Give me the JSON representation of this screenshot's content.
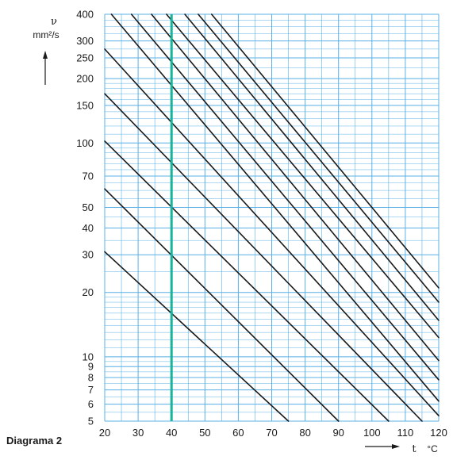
{
  "chart_data": {
    "type": "line",
    "caption": "Diagrama 2",
    "x_axis": {
      "symbol": "t",
      "unit": "°C",
      "range": [
        20,
        120
      ],
      "scale": "linear",
      "ticks": [
        20,
        30,
        40,
        50,
        60,
        70,
        80,
        90,
        100,
        110,
        120
      ]
    },
    "y_axis": {
      "symbol": "ν",
      "unit": "mm²/s",
      "range": [
        5,
        400
      ],
      "scale": "log",
      "ticks": [
        5,
        6,
        7,
        8,
        9,
        10,
        20,
        30,
        40,
        50,
        70,
        100,
        150,
        200,
        250,
        300,
        400
      ]
    },
    "grid": true,
    "grid_color": "#5ab0e6",
    "line_color": "#1a1a1a",
    "reference_line": {
      "x": 40,
      "color": "#17b39a"
    },
    "series": [
      {
        "points": [
          [
            20,
            31
          ],
          [
            75,
            5
          ]
        ]
      },
      {
        "points": [
          [
            20,
            61
          ],
          [
            90,
            5
          ]
        ]
      },
      {
        "points": [
          [
            20,
            102
          ],
          [
            105,
            5
          ]
        ]
      },
      {
        "points": [
          [
            20,
            170
          ],
          [
            115,
            5
          ]
        ]
      },
      {
        "points": [
          [
            20,
            275
          ],
          [
            120,
            5.3
          ]
        ]
      },
      {
        "points": [
          [
            22,
            400
          ],
          [
            120,
            6.2
          ]
        ]
      },
      {
        "points": [
          [
            28,
            400
          ],
          [
            120,
            7.8
          ]
        ]
      },
      {
        "points": [
          [
            34,
            400
          ],
          [
            120,
            9.6
          ]
        ]
      },
      {
        "points": [
          [
            38.5,
            400
          ],
          [
            120,
            12.3
          ]
        ]
      },
      {
        "points": [
          [
            44,
            400
          ],
          [
            120,
            14.8
          ]
        ]
      },
      {
        "points": [
          [
            48,
            400
          ],
          [
            120,
            18
          ]
        ]
      },
      {
        "points": [
          [
            52,
            400
          ],
          [
            120,
            21
          ]
        ]
      }
    ]
  }
}
